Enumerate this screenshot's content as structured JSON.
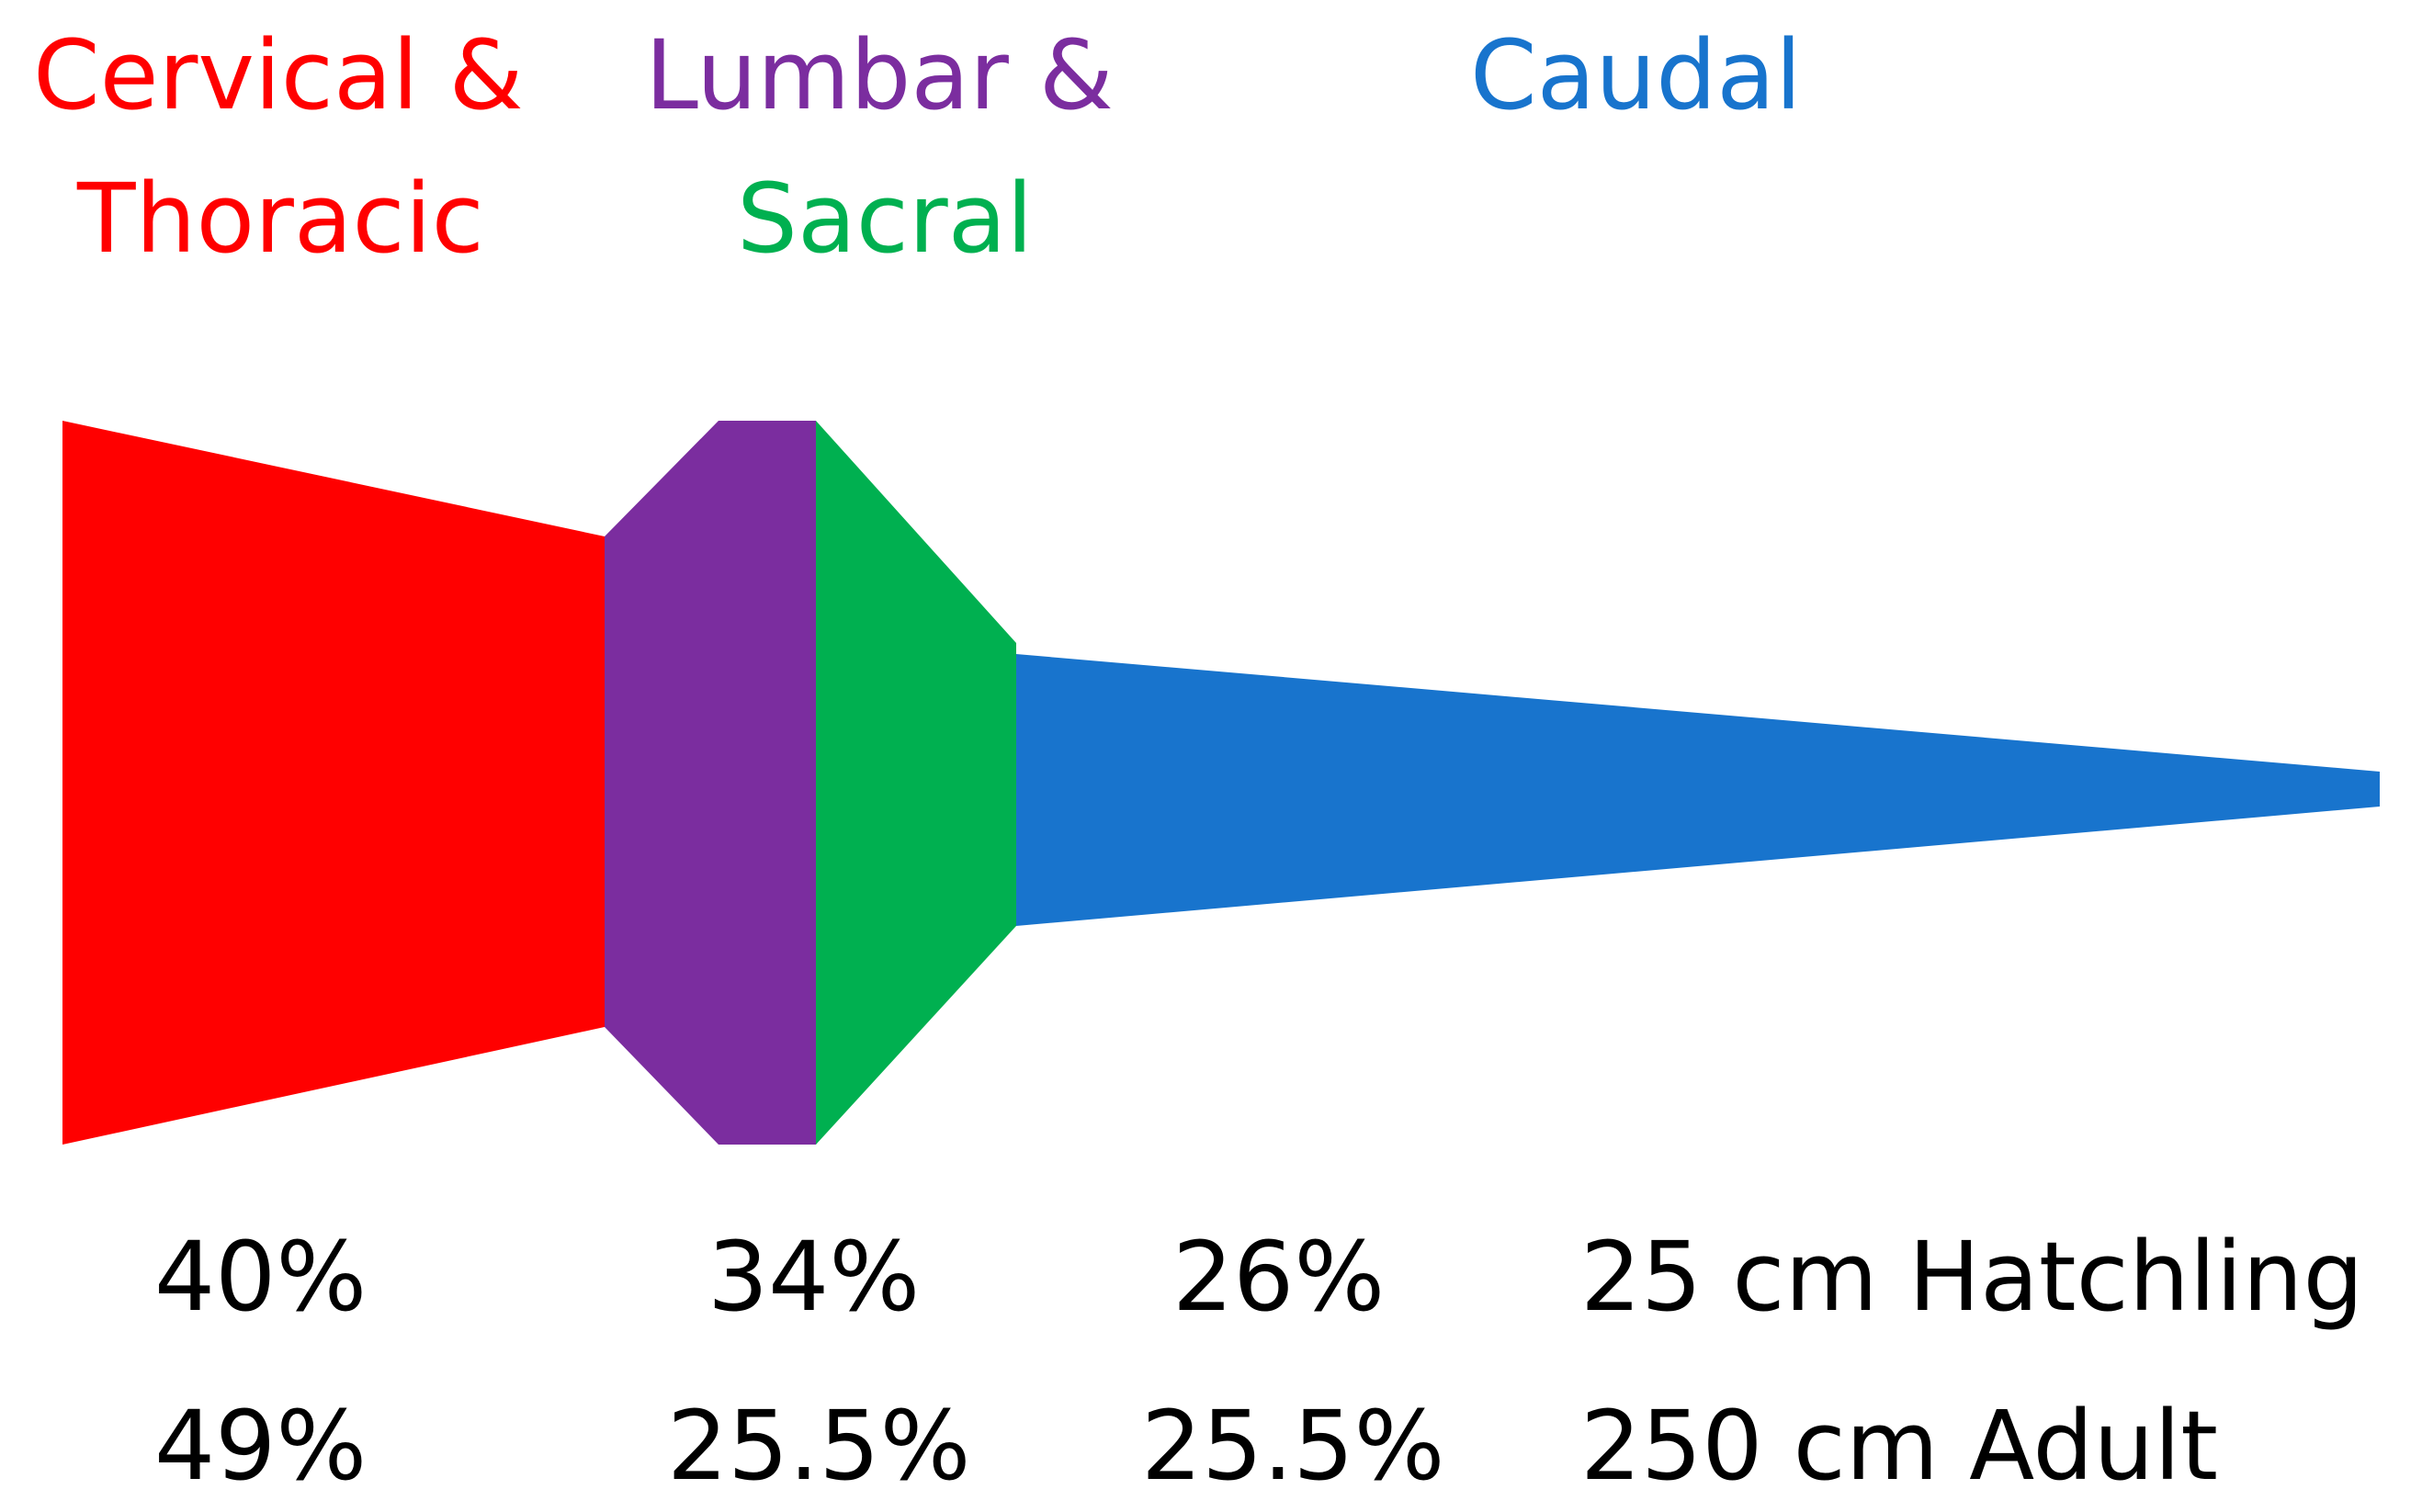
{
  "regions": [
    {
      "id": "cervical-thoracic",
      "line1": "Cervical &",
      "line2": "Thoracic",
      "color": "#ff0000"
    },
    {
      "id": "lumbar",
      "line1": "Lumbar &",
      "color": "#7b2d9f"
    },
    {
      "id": "sacral",
      "line1": "Sacral",
      "color": "#00b050"
    },
    {
      "id": "caudal",
      "line1": "Caudal",
      "color": "#1874cd"
    }
  ],
  "rows": [
    {
      "values": [
        "40%",
        "34%",
        "26%"
      ],
      "label": "25 cm Hatchling"
    },
    {
      "values": [
        "49%",
        "25.5%",
        "25.5%"
      ],
      "label": "250 cm Adult"
    }
  ]
}
